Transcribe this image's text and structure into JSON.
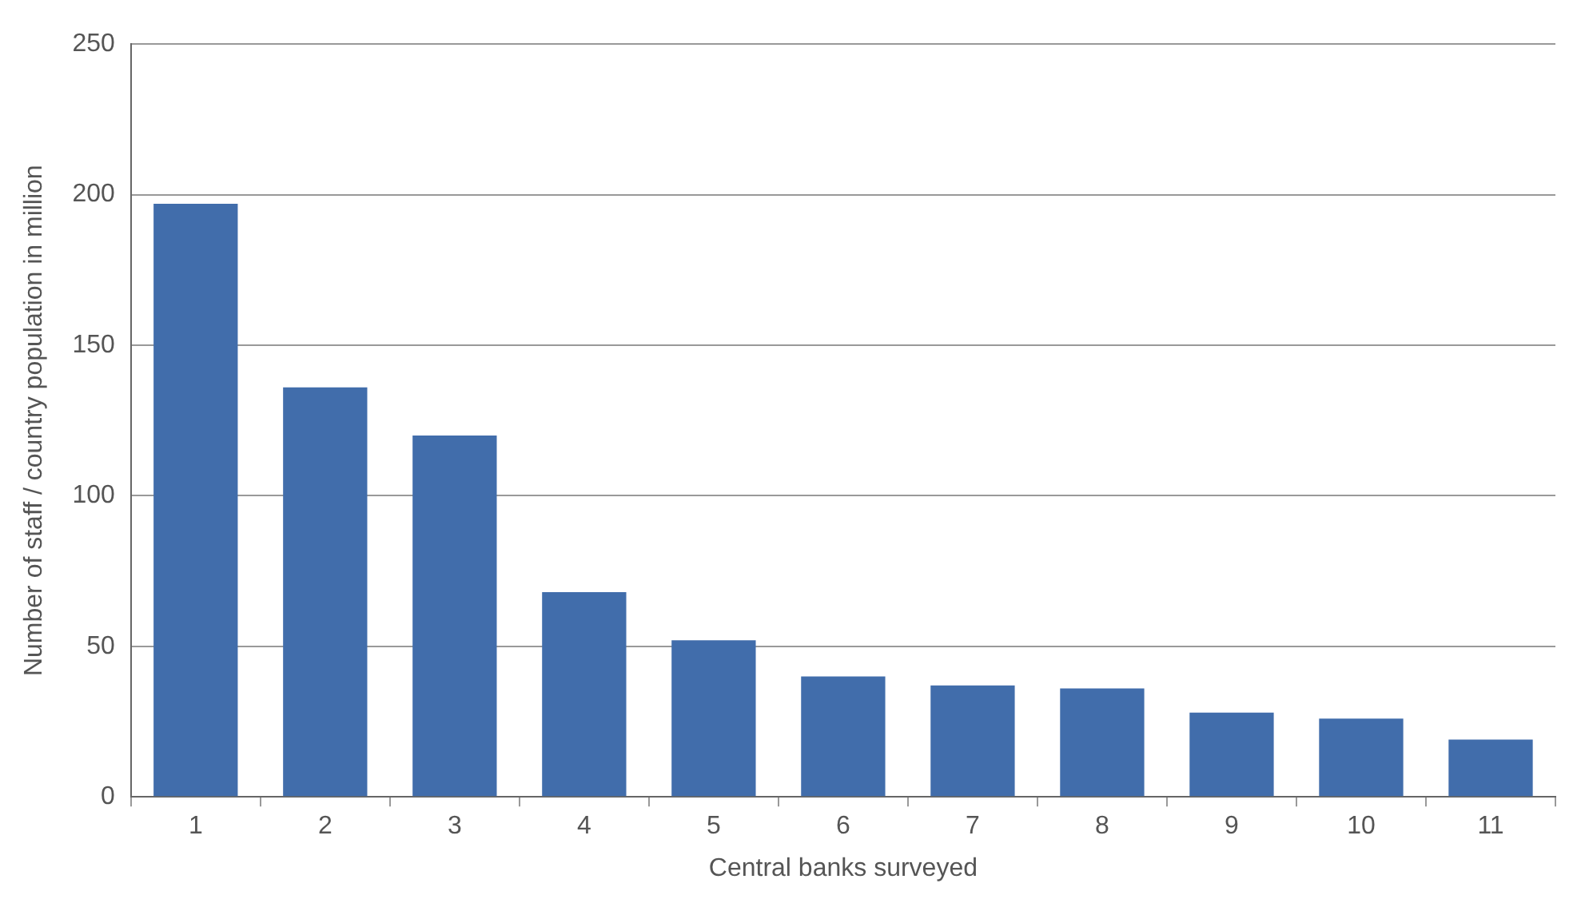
{
  "chart_data": {
    "type": "bar",
    "xlabel": "Central banks surveyed",
    "ylabel": "Number of staff / country population in million",
    "categories": [
      "1",
      "2",
      "3",
      "4",
      "5",
      "6",
      "7",
      "8",
      "9",
      "10",
      "11"
    ],
    "values": [
      197,
      136,
      120,
      68,
      52,
      40,
      37,
      36,
      28,
      26,
      19
    ],
    "color": "#416dab",
    "ylim": [
      0,
      250
    ],
    "yticks": [
      0,
      50,
      100,
      150,
      200,
      250
    ],
    "grid": "y",
    "legend": false
  }
}
